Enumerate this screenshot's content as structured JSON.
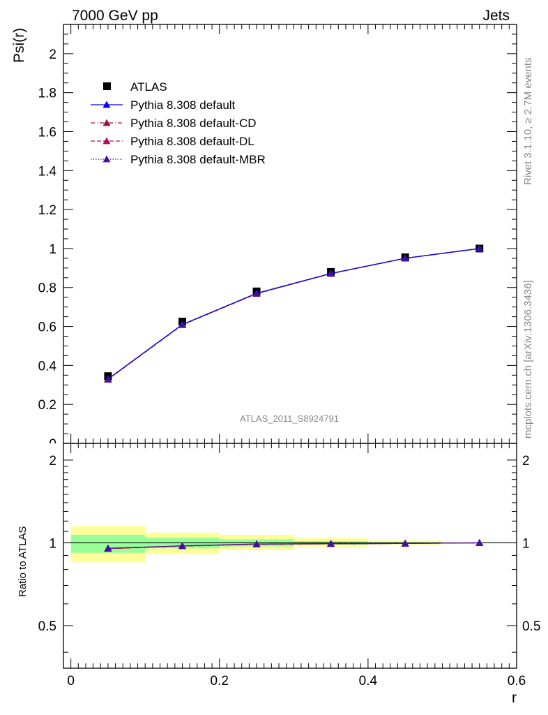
{
  "header": {
    "left": "7000 GeV pp",
    "right": "Jets"
  },
  "side_text": {
    "rivet": "Rivet 3.1.10, ≥ 2.7M events",
    "mcplots": "mcplots.cern.ch [arXiv:1306.3436]"
  },
  "watermark": "ATLAS_2011_S8924791",
  "chart_data": [
    {
      "type": "line",
      "ylabel": "Psi(r)",
      "xlim": [
        -0.01,
        0.6
      ],
      "ylim": [
        0,
        2.15
      ],
      "yticks": [
        "0.2",
        "0.4",
        "0.6",
        "0.8",
        "1",
        "1.2",
        "1.4",
        "1.6",
        "1.8",
        "2"
      ],
      "legend_position": "top-left",
      "data": {
        "name": "ATLAS",
        "x": [
          0.05,
          0.15,
          0.25,
          0.35,
          0.45,
          0.55
        ],
        "y": [
          0.345,
          0.625,
          0.78,
          0.88,
          0.955,
          1.0
        ]
      },
      "series": [
        {
          "name": "Pythia 8.308 default",
          "color": "#0000ff",
          "dash": "solid",
          "x": [
            0.05,
            0.15,
            0.25,
            0.35,
            0.45,
            0.55
          ],
          "y": [
            0.33,
            0.61,
            0.77,
            0.872,
            0.95,
            1.0
          ]
        },
        {
          "name": "Pythia 8.308 default-CD",
          "color": "#a0103a",
          "dash": "dashdot",
          "x": [
            0.05,
            0.15,
            0.25,
            0.35,
            0.45,
            0.55
          ],
          "y": [
            0.328,
            0.608,
            0.768,
            0.871,
            0.95,
            1.0
          ]
        },
        {
          "name": "Pythia 8.308 default-DL",
          "color": "#b0105a",
          "dash": "dash",
          "x": [
            0.05,
            0.15,
            0.25,
            0.35,
            0.45,
            0.55
          ],
          "y": [
            0.329,
            0.609,
            0.769,
            0.871,
            0.95,
            1.0
          ]
        },
        {
          "name": "Pythia 8.308 default-MBR",
          "color": "#4010a0",
          "dash": "dot",
          "x": [
            0.05,
            0.15,
            0.25,
            0.35,
            0.45,
            0.55
          ],
          "y": [
            0.33,
            0.61,
            0.77,
            0.872,
            0.95,
            1.0
          ]
        }
      ]
    },
    {
      "type": "line",
      "ylabel": "Ratio to ATLAS",
      "xlabel": "r",
      "xlim": [
        -0.01,
        0.6
      ],
      "ylim": [
        0.35,
        2.3
      ],
      "log_y": true,
      "xticks": [
        "0",
        "0.2",
        "0.4",
        "0.6"
      ],
      "yticks": [
        "0.5",
        "1",
        "2"
      ],
      "bands": [
        {
          "x0": 0.0,
          "x1": 0.1,
          "green": [
            0.92,
            1.07
          ],
          "yellow": [
            0.85,
            1.15
          ]
        },
        {
          "x0": 0.1,
          "x1": 0.2,
          "green": [
            0.955,
            1.045
          ],
          "yellow": [
            0.91,
            1.09
          ]
        },
        {
          "x0": 0.2,
          "x1": 0.3,
          "green": [
            0.97,
            1.03
          ],
          "yellow": [
            0.94,
            1.07
          ]
        },
        {
          "x0": 0.3,
          "x1": 0.4,
          "green": [
            0.985,
            1.015
          ],
          "yellow": [
            0.965,
            1.04
          ]
        },
        {
          "x0": 0.4,
          "x1": 0.5,
          "green": [
            0.993,
            1.007
          ],
          "yellow": [
            0.985,
            1.02
          ]
        },
        {
          "x0": 0.5,
          "x1": 0.6,
          "green": [
            1.0,
            1.0
          ],
          "yellow": [
            1.0,
            1.0
          ]
        }
      ],
      "series": [
        {
          "name": "Pythia 8.308 default",
          "color": "#0000ff",
          "dash": "solid",
          "x": [
            0.05,
            0.15,
            0.25,
            0.35,
            0.45,
            0.55
          ],
          "y": [
            0.955,
            0.975,
            0.99,
            0.993,
            0.995,
            1.0
          ]
        },
        {
          "name": "Pythia 8.308 default-CD",
          "color": "#a0103a",
          "dash": "dashdot",
          "x": [
            0.05,
            0.15,
            0.25,
            0.35,
            0.45,
            0.55
          ],
          "y": [
            0.952,
            0.973,
            0.988,
            0.992,
            0.995,
            1.0
          ]
        },
        {
          "name": "Pythia 8.308 default-DL",
          "color": "#b0105a",
          "dash": "dash",
          "x": [
            0.05,
            0.15,
            0.25,
            0.35,
            0.45,
            0.55
          ],
          "y": [
            0.953,
            0.974,
            0.989,
            0.992,
            0.995,
            1.0
          ]
        },
        {
          "name": "Pythia 8.308 default-MBR",
          "color": "#4010a0",
          "dash": "dot",
          "x": [
            0.05,
            0.15,
            0.25,
            0.35,
            0.45,
            0.55
          ],
          "y": [
            0.955,
            0.975,
            0.99,
            0.993,
            0.995,
            1.0
          ]
        }
      ]
    }
  ]
}
